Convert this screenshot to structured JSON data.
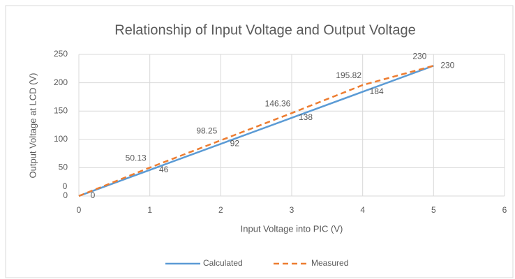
{
  "chart_data": {
    "type": "line",
    "title": "Relationship of Input Voltage and Output Voltage",
    "x_label": "Input Voltage into PIC (V)",
    "y_label": "Output Voltage at LCD (V)",
    "x": [
      0,
      1,
      2,
      3,
      4,
      5
    ],
    "series": [
      {
        "name": "Calculated",
        "color": "#5b9bd5",
        "values": [
          0,
          46,
          92,
          138,
          184,
          230
        ]
      },
      {
        "name": "Measured",
        "color": "#ed7d31",
        "dashed": true,
        "values": [
          0,
          50.13,
          98.25,
          146.36,
          195.82,
          230
        ]
      }
    ],
    "xlim": [
      0,
      6
    ],
    "xticks": [
      0,
      1,
      2,
      3,
      4,
      5,
      6
    ],
    "ylim": [
      0,
      250
    ],
    "yticks": [
      0,
      50,
      100,
      150,
      200,
      250
    ],
    "grid": true,
    "legend": "bottom"
  }
}
